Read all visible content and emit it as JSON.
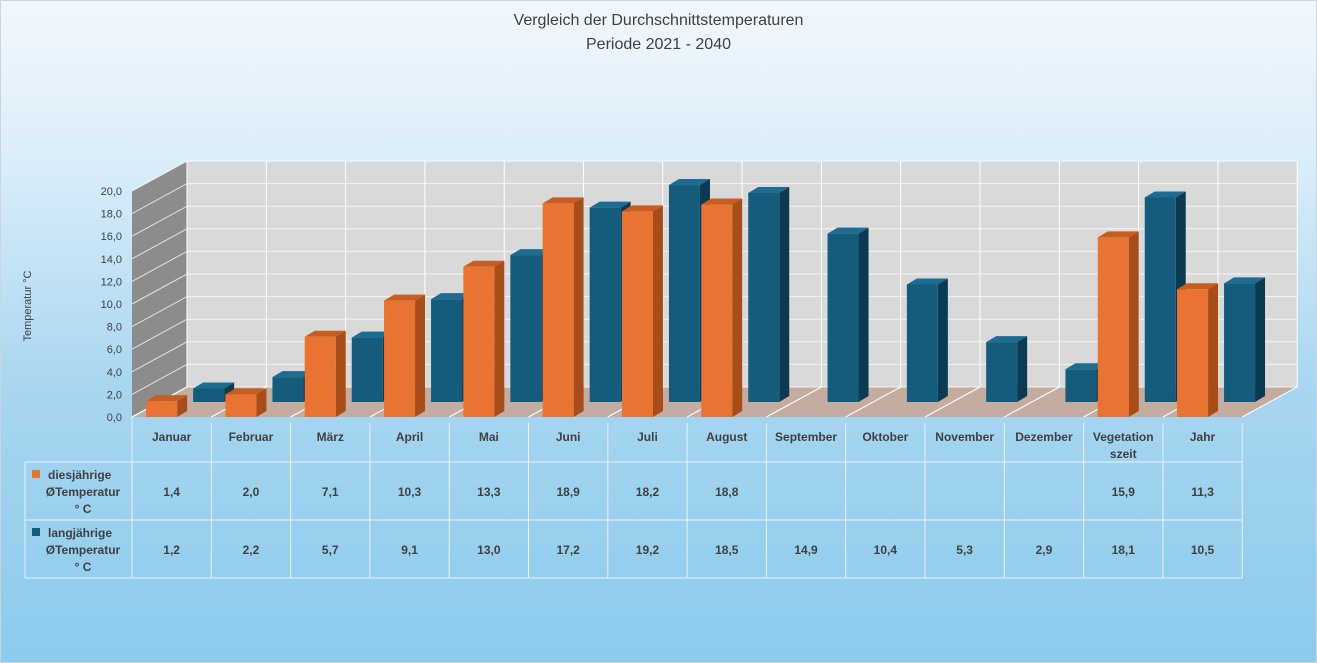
{
  "title_line1": "Vergleich der Durchschnittstemperaturen",
  "title_line2": "Periode 2021 - 2040",
  "y_axis_label": "Temperatur °C",
  "colors": {
    "orange_front": "#e87332",
    "orange_side": "#a84c18",
    "orange_top": "#c65d22",
    "blue_front": "#155b7c",
    "blue_side": "#0b3a52",
    "blue_top": "#1d6d92",
    "wall_back": "#d9d9d9",
    "wall_left": "#8c8c8c",
    "floor": "#c5aca0",
    "table_line": "#e9f2f8"
  },
  "chart_data": {
    "type": "bar",
    "title": "Vergleich der Durchschnittstemperaturen",
    "subtitle": "Periode 2021 - 2040",
    "ylabel": "Temperatur °C",
    "ylim": [
      0,
      20
    ],
    "y_ticks": [
      "0,0",
      "2,0",
      "4,0",
      "6,0",
      "8,0",
      "10,0",
      "12,0",
      "14,0",
      "16,0",
      "18,0",
      "20,0"
    ],
    "grid": true,
    "legend": "data-table",
    "categories": [
      "Januar",
      "Februar",
      "März",
      "April",
      "Mai",
      "Juni",
      "Juli",
      "August",
      "September",
      "Oktober",
      "November",
      "Dezember",
      "Vegetation szeit",
      "Jahr"
    ],
    "category_lines": [
      [
        "Januar"
      ],
      [
        "Februar"
      ],
      [
        "März"
      ],
      [
        "April"
      ],
      [
        "Mai"
      ],
      [
        "Juni"
      ],
      [
        "Juli"
      ],
      [
        "August"
      ],
      [
        "September"
      ],
      [
        "Oktober"
      ],
      [
        "November"
      ],
      [
        "Dezember"
      ],
      [
        "Vegetation",
        "szeit"
      ],
      [
        "Jahr"
      ]
    ],
    "series": [
      {
        "name": "diesjährige ØTemperatur ° C",
        "name_lines": [
          "diesjährige",
          "ØTemperatur",
          "° C"
        ],
        "values": [
          1.4,
          2.0,
          7.1,
          10.3,
          13.3,
          18.9,
          18.2,
          18.8,
          null,
          null,
          null,
          null,
          15.9,
          11.3
        ],
        "labels": [
          "1,4",
          "2,0",
          "7,1",
          "10,3",
          "13,3",
          "18,9",
          "18,2",
          "18,8",
          "",
          "",
          "",
          "",
          "15,9",
          "11,3"
        ]
      },
      {
        "name": "langjährige ØTemperatur ° C",
        "name_lines": [
          "langjährige",
          "ØTemperatur",
          "° C"
        ],
        "values": [
          1.2,
          2.2,
          5.7,
          9.1,
          13.0,
          17.2,
          19.2,
          18.5,
          14.9,
          10.4,
          5.3,
          2.9,
          18.1,
          10.5
        ],
        "labels": [
          "1,2",
          "2,2",
          "5,7",
          "9,1",
          "13,0",
          "17,2",
          "19,2",
          "18,5",
          "14,9",
          "10,4",
          "5,3",
          "2,9",
          "18,1",
          "10,5"
        ]
      }
    ]
  }
}
